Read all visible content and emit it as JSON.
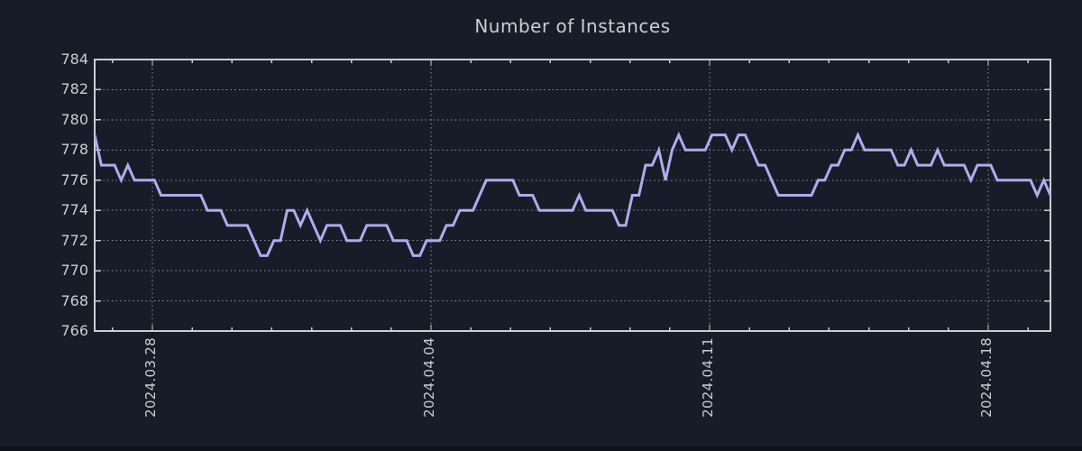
{
  "title": "Number of Instances",
  "colors": {
    "background": "#161d28",
    "text": "#c9ced6",
    "border": "#c9ced5",
    "grid": "#8a919b",
    "line": "#abadec",
    "footer": "#0d1219"
  },
  "chart_data": {
    "type": "line",
    "title": "Number of Instances",
    "ylabel": "",
    "xlabel": "",
    "ylim": [
      766,
      784
    ],
    "ytick_values": [
      784,
      782,
      780,
      778,
      776,
      774,
      772,
      770,
      768,
      766
    ],
    "xtick_labels": [
      "2024.03.28",
      "2024.04.04",
      "2024.04.11",
      "2024.04.18"
    ],
    "grid": true,
    "legend": "none",
    "series": [
      {
        "name": "Number of Instances",
        "values": [
          779,
          777,
          777,
          777,
          776,
          777,
          776,
          776,
          776,
          776,
          775,
          775,
          775,
          775,
          775,
          775,
          775,
          774,
          774,
          774,
          773,
          773,
          773,
          773,
          772,
          771,
          771,
          772,
          772,
          774,
          774,
          773,
          774,
          773,
          772,
          773,
          773,
          773,
          772,
          772,
          772,
          773,
          773,
          773,
          773,
          772,
          772,
          772,
          771,
          771,
          772,
          772,
          772,
          773,
          773,
          774,
          774,
          774,
          775,
          776,
          776,
          776,
          776,
          776,
          775,
          775,
          775,
          774,
          774,
          774,
          774,
          774,
          774,
          775,
          774,
          774,
          774,
          774,
          774,
          773,
          773,
          775,
          775,
          777,
          777,
          778,
          776,
          778,
          779,
          778,
          778,
          778,
          778,
          779,
          779,
          779,
          778,
          779,
          779,
          778,
          777,
          777,
          776,
          775,
          775,
          775,
          775,
          775,
          775,
          776,
          776,
          777,
          777,
          778,
          778,
          779,
          778,
          778,
          778,
          778,
          778,
          777,
          777,
          778,
          777,
          777,
          777,
          778,
          777,
          777,
          777,
          777,
          776,
          777,
          777,
          777,
          776,
          776,
          776,
          776,
          776,
          776,
          775,
          776,
          775
        ]
      }
    ]
  }
}
